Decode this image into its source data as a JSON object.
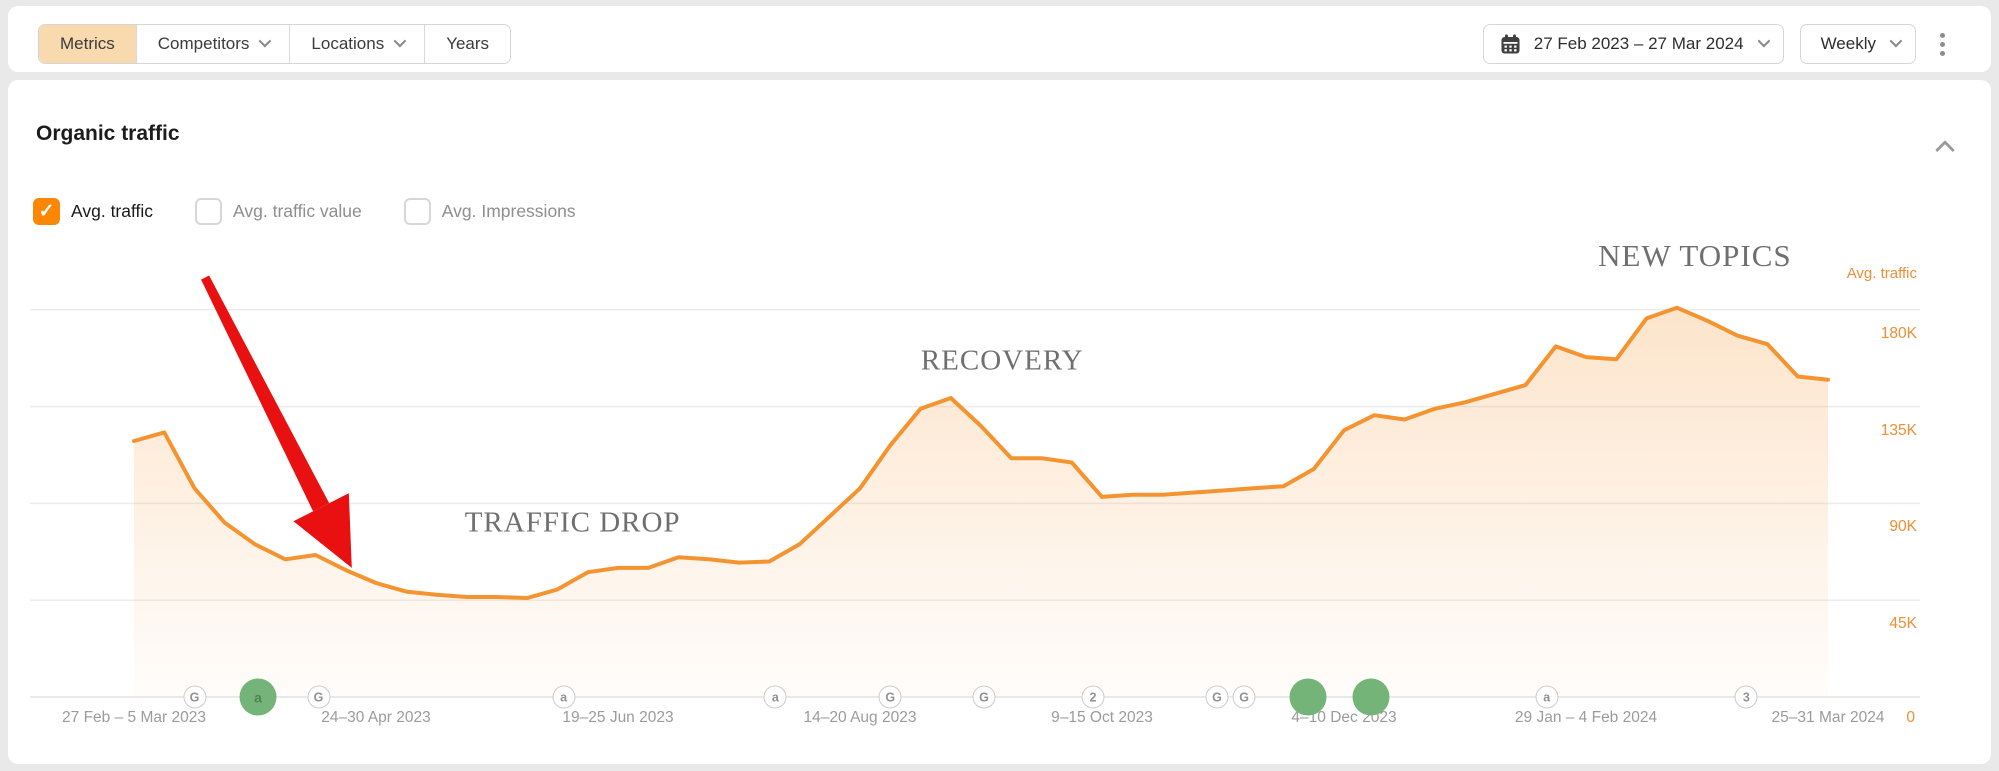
{
  "toolbar": {
    "tabs": [
      {
        "label": "Metrics",
        "active": true,
        "has_dropdown": false
      },
      {
        "label": "Competitors",
        "active": false,
        "has_dropdown": true
      },
      {
        "label": "Locations",
        "active": false,
        "has_dropdown": true
      },
      {
        "label": "Years",
        "active": false,
        "has_dropdown": false
      }
    ],
    "date_range": "27 Feb 2023 – 27 Mar 2024",
    "granularity": "Weekly",
    "icons": {
      "calendar": "calendar-icon",
      "more": "kebab-menu-icon"
    }
  },
  "panel": {
    "title": "Organic traffic",
    "checkboxes": [
      {
        "label": "Avg. traffic",
        "checked": true
      },
      {
        "label": "Avg. traffic value",
        "checked": false
      },
      {
        "label": "Avg. Impressions",
        "checked": false
      }
    ]
  },
  "chart_data": {
    "type": "area",
    "title": "Organic traffic",
    "series": [
      {
        "name": "Avg. traffic",
        "unit": "visits per week (thousands)"
      }
    ],
    "weeks": 57,
    "values_thousands": [
      119,
      123,
      97,
      81,
      71,
      64,
      66,
      59,
      53,
      49,
      47.5,
      46.5,
      46.5,
      46,
      50,
      58,
      60,
      60,
      65,
      64,
      62.5,
      63,
      71,
      84,
      97,
      117,
      134,
      139,
      126,
      111,
      111,
      109,
      93,
      94,
      94,
      95,
      96,
      97,
      98,
      106,
      124,
      131,
      129,
      134,
      137,
      141,
      145,
      163,
      158,
      157,
      176,
      181,
      175,
      168,
      164,
      149,
      147.5
    ],
    "x_ticks": [
      {
        "week": 0,
        "label": "27 Feb – 5 Mar 2023"
      },
      {
        "week": 8,
        "label": "24–30 Apr 2023"
      },
      {
        "week": 16,
        "label": "19–25 Jun 2023"
      },
      {
        "week": 24,
        "label": "14–20 Aug 2023"
      },
      {
        "week": 32,
        "label": "9–15 Oct 2023"
      },
      {
        "week": 40,
        "label": "4–10 Dec 2023"
      },
      {
        "week": 48,
        "label": "29 Jan – 4 Feb 2024"
      },
      {
        "week": 56,
        "label": "25–31 Mar 2024"
      }
    ],
    "y_ticks": [
      {
        "value_thousands": 180,
        "label": "180K"
      },
      {
        "value_thousands": 135,
        "label": "135K"
      },
      {
        "value_thousands": 90,
        "label": "90K"
      },
      {
        "value_thousands": 45,
        "label": "45K"
      }
    ],
    "y_zero_label": "0",
    "ylim_thousands": [
      0,
      217
    ],
    "grid": true,
    "legend_label": "Avg. traffic",
    "legend_position": "top-right",
    "annotations": [
      {
        "text": "TRAFFIC DROP",
        "week": 14.5,
        "value_thousands": 81
      },
      {
        "text": "RECOVERY",
        "week": 28.7,
        "value_thousands": 156
      },
      {
        "text": "NEW TOPICS",
        "week": 51.6,
        "value_thousands": 205
      }
    ],
    "arrow": {
      "from_week": 2.35,
      "from_thousands": 195,
      "to_week": 7.2,
      "to_thousands": 60
    },
    "event_markers": [
      {
        "week": 2.0,
        "style": "outline",
        "label": "G"
      },
      {
        "week": 4.1,
        "style": "green",
        "label": "a"
      },
      {
        "week": 6.1,
        "style": "outline",
        "label": "G"
      },
      {
        "week": 14.2,
        "style": "outline",
        "label": "a"
      },
      {
        "week": 21.2,
        "style": "outline",
        "label": "a"
      },
      {
        "week": 25.0,
        "style": "outline",
        "label": "G"
      },
      {
        "week": 28.1,
        "style": "outline",
        "label": "G"
      },
      {
        "week": 31.7,
        "style": "outline",
        "label": "2"
      },
      {
        "week": 35.8,
        "style": "outline",
        "label": "G"
      },
      {
        "week": 36.7,
        "style": "outline",
        "label": "G"
      },
      {
        "week": 38.8,
        "style": "green",
        "label": ""
      },
      {
        "week": 40.9,
        "style": "green",
        "label": ""
      },
      {
        "week": 46.7,
        "style": "outline",
        "label": "a"
      },
      {
        "week": 53.3,
        "style": "outline",
        "label": "3"
      }
    ],
    "colors": {
      "line": "#f49431",
      "area_top": "rgba(246,150,53,0.30)",
      "area_bottom": "rgba(246,150,53,0.02)",
      "axis_labels": "#ef8e34",
      "gridline": "#ececec",
      "annotation_text": "#6f6f6f",
      "arrow": "#e81010",
      "event_green": "#74b478",
      "checkbox_checked": "#fb8704",
      "active_tab_bg": "#f9d9ae"
    }
  }
}
